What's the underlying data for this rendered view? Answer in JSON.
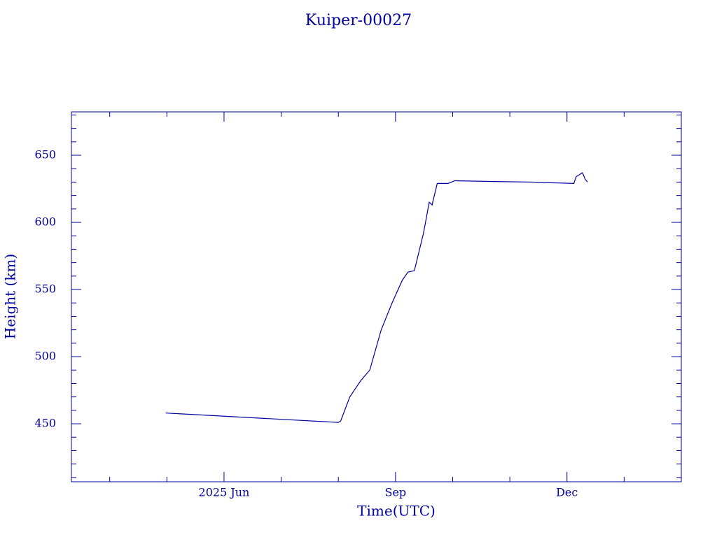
{
  "chart_data": {
    "type": "line",
    "title": "Kuiper-00027",
    "x_label": "Time(UTC)",
    "y_label": "Height (km)",
    "x": [
      4.98,
      8.0,
      8.04,
      8.2,
      8.39,
      8.55,
      8.75,
      8.94,
      9.12,
      9.22,
      9.33,
      9.49,
      9.59,
      9.64,
      9.73,
      9.92,
      10.04,
      10.65,
      11.39,
      12.12,
      12.16,
      12.27,
      12.32,
      12.36
    ],
    "series": [
      {
        "name": "Kuiper-00027",
        "color": "#0000a0",
        "values": [
          458,
          451,
          452,
          470,
          482,
          490,
          520,
          540,
          557,
          563,
          564,
          592,
          615,
          613,
          629,
          629,
          631,
          630.5,
          630,
          629,
          634,
          637,
          632,
          630
        ]
      }
    ],
    "xlim": [
      3.33,
      14.0
    ],
    "xticks": [
      {
        "value": 6,
        "label": "2025 Jun"
      },
      {
        "value": 9,
        "label": "Sep"
      },
      {
        "value": 12,
        "label": "Dec"
      }
    ],
    "xminorticks": [
      4,
      5,
      7,
      8,
      10,
      11,
      13
    ],
    "ylim": [
      406.8,
      682.3
    ],
    "yticks": [
      450,
      500,
      550,
      600,
      650
    ],
    "yminorticks": [
      410,
      420,
      430,
      440,
      460,
      470,
      480,
      490,
      510,
      520,
      530,
      540,
      560,
      570,
      580,
      590,
      610,
      620,
      630,
      640,
      660,
      670,
      680
    ],
    "grid": false
  }
}
